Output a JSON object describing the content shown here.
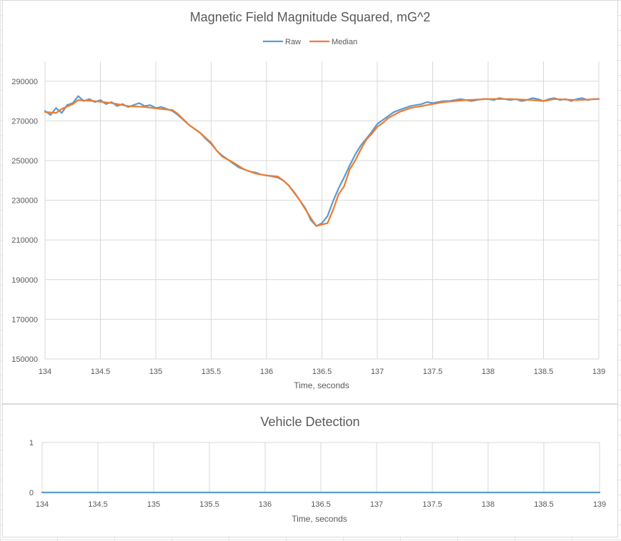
{
  "chart_data": [
    {
      "type": "line",
      "title": "Magnetic Field Magnitude Squared, mG^2",
      "xlabel": "Time, seconds",
      "ylabel": "",
      "xlim": [
        134,
        139
      ],
      "ylim": [
        150000,
        300000
      ],
      "x_ticks": [
        "134",
        "134.5",
        "135",
        "135.5",
        "136",
        "136.5",
        "137",
        "137.5",
        "138",
        "138.5",
        "139"
      ],
      "y_ticks": [
        "150000",
        "170000",
        "190000",
        "210000",
        "230000",
        "250000",
        "270000",
        "290000"
      ],
      "grid": true,
      "legend": "top-center",
      "series": [
        {
          "name": "Raw",
          "color": "#5b9bd5",
          "points": [
            [
              134.0,
              275000
            ],
            [
              134.05,
              273000
            ],
            [
              134.1,
              276500
            ],
            [
              134.15,
              274000
            ],
            [
              134.2,
              278000
            ],
            [
              134.25,
              279000
            ],
            [
              134.3,
              282500
            ],
            [
              134.35,
              280000
            ],
            [
              134.4,
              281000
            ],
            [
              134.45,
              279500
            ],
            [
              134.5,
              280500
            ],
            [
              134.55,
              278500
            ],
            [
              134.6,
              279500
            ],
            [
              134.65,
              277500
            ],
            [
              134.7,
              278500
            ],
            [
              134.75,
              277000
            ],
            [
              134.8,
              278000
            ],
            [
              134.85,
              279000
            ],
            [
              134.9,
              277500
            ],
            [
              134.95,
              278000
            ],
            [
              135.0,
              276500
            ],
            [
              135.05,
              277000
            ],
            [
              135.1,
              276000
            ],
            [
              135.15,
              275000
            ],
            [
              135.2,
              273000
            ],
            [
              135.25,
              270500
            ],
            [
              135.3,
              268000
            ],
            [
              135.35,
              266000
            ],
            [
              135.4,
              264000
            ],
            [
              135.45,
              261000
            ],
            [
              135.5,
              258500
            ],
            [
              135.55,
              255000
            ],
            [
              135.6,
              252500
            ],
            [
              135.65,
              250500
            ],
            [
              135.7,
              248500
            ],
            [
              135.75,
              246500
            ],
            [
              135.8,
              245500
            ],
            [
              135.85,
              244500
            ],
            [
              135.9,
              244000
            ],
            [
              135.95,
              243000
            ],
            [
              136.0,
              242500
            ],
            [
              136.05,
              242000
            ],
            [
              136.1,
              241500
            ],
            [
              136.15,
              240000
            ],
            [
              136.2,
              237500
            ],
            [
              136.25,
              234000
            ],
            [
              136.3,
              230000
            ],
            [
              136.35,
              226000
            ],
            [
              136.4,
              220000
            ],
            [
              136.45,
              217000
            ],
            [
              136.5,
              218500
            ],
            [
              136.55,
              222000
            ],
            [
              136.6,
              229500
            ],
            [
              136.65,
              236000
            ],
            [
              136.7,
              241500
            ],
            [
              136.75,
              247500
            ],
            [
              136.8,
              253000
            ],
            [
              136.85,
              257500
            ],
            [
              136.9,
              261000
            ],
            [
              136.95,
              264500
            ],
            [
              137.0,
              268500
            ],
            [
              137.05,
              270500
            ],
            [
              137.1,
              272500
            ],
            [
              137.15,
              274500
            ],
            [
              137.2,
              275500
            ],
            [
              137.25,
              276500
            ],
            [
              137.3,
              277500
            ],
            [
              137.35,
              278000
            ],
            [
              137.4,
              278500
            ],
            [
              137.45,
              279500
            ],
            [
              137.5,
              279000
            ],
            [
              137.55,
              279500
            ],
            [
              137.6,
              280000
            ],
            [
              137.65,
              280000
            ],
            [
              137.7,
              280500
            ],
            [
              137.75,
              281000
            ],
            [
              137.8,
              280500
            ],
            [
              137.85,
              280000
            ],
            [
              137.9,
              280500
            ],
            [
              137.95,
              281000
            ],
            [
              138.0,
              281000
            ],
            [
              138.05,
              280500
            ],
            [
              138.1,
              281500
            ],
            [
              138.15,
              281000
            ],
            [
              138.2,
              280500
            ],
            [
              138.25,
              281000
            ],
            [
              138.3,
              280000
            ],
            [
              138.35,
              280500
            ],
            [
              138.4,
              281500
            ],
            [
              138.45,
              281000
            ],
            [
              138.5,
              280000
            ],
            [
              138.55,
              281000
            ],
            [
              138.6,
              281500
            ],
            [
              138.65,
              280500
            ],
            [
              138.7,
              281000
            ],
            [
              138.75,
              280000
            ],
            [
              138.8,
              281000
            ],
            [
              138.85,
              281500
            ],
            [
              138.9,
              280500
            ],
            [
              138.95,
              281000
            ],
            [
              139.0,
              281000
            ]
          ]
        },
        {
          "name": "Median",
          "color": "#ed7d31",
          "points": [
            [
              134.0,
              274500
            ],
            [
              134.1,
              274000
            ],
            [
              134.15,
              276000
            ],
            [
              134.25,
              278500
            ],
            [
              134.3,
              280500
            ],
            [
              134.45,
              280000
            ],
            [
              134.6,
              279000
            ],
            [
              134.75,
              277500
            ],
            [
              134.9,
              277000
            ],
            [
              135.05,
              276000
            ],
            [
              135.15,
              275500
            ],
            [
              135.2,
              273500
            ],
            [
              135.3,
              268000
            ],
            [
              135.4,
              264000
            ],
            [
              135.5,
              259000
            ],
            [
              135.55,
              255000
            ],
            [
              135.6,
              252000
            ],
            [
              135.7,
              249000
            ],
            [
              135.8,
              245500
            ],
            [
              135.9,
              243500
            ],
            [
              136.0,
              242500
            ],
            [
              136.1,
              242000
            ],
            [
              136.15,
              240000
            ],
            [
              136.2,
              237500
            ],
            [
              136.3,
              230000
            ],
            [
              136.4,
              221000
            ],
            [
              136.45,
              217000
            ],
            [
              136.55,
              218500
            ],
            [
              136.6,
              225000
            ],
            [
              136.65,
              233000
            ],
            [
              136.7,
              237000
            ],
            [
              136.75,
              245500
            ],
            [
              136.8,
              250000
            ],
            [
              136.85,
              255500
            ],
            [
              136.9,
              260500
            ],
            [
              136.95,
              263500
            ],
            [
              137.0,
              267000
            ],
            [
              137.05,
              269000
            ],
            [
              137.1,
              271500
            ],
            [
              137.2,
              274500
            ],
            [
              137.3,
              276500
            ],
            [
              137.4,
              277500
            ],
            [
              137.5,
              278500
            ],
            [
              137.6,
              279500
            ],
            [
              137.8,
              280500
            ],
            [
              138.0,
              281000
            ],
            [
              138.2,
              281000
            ],
            [
              138.4,
              280500
            ],
            [
              138.5,
              280000
            ],
            [
              138.6,
              281000
            ],
            [
              138.8,
              280500
            ],
            [
              139.0,
              281000
            ]
          ]
        }
      ]
    },
    {
      "type": "line",
      "title": "Vehicle Detection",
      "xlabel": "Time, seconds",
      "ylabel": "",
      "xlim": [
        134,
        139
      ],
      "ylim": [
        0,
        1
      ],
      "x_ticks": [
        "134",
        "134.5",
        "135",
        "135.5",
        "136",
        "136.5",
        "137",
        "137.5",
        "138",
        "138.5",
        "139"
      ],
      "y_ticks": [
        "0",
        "1"
      ],
      "grid": true,
      "legend": "none",
      "series": [
        {
          "color": "#5b9bd5",
          "points": [
            [
              134,
              0
            ],
            [
              139,
              0
            ]
          ]
        }
      ]
    }
  ]
}
